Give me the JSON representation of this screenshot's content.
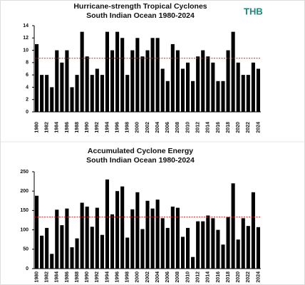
{
  "logo": "THB",
  "chart_data": [
    {
      "type": "bar",
      "title": "Hurricane-strength Tropical Cyclones",
      "subtitle": "South Indian Ocean 1980-2024",
      "categories": [
        "1980",
        null,
        "1982",
        null,
        "1984",
        null,
        "1986",
        null,
        "1988",
        null,
        "1990",
        null,
        "1992",
        null,
        "1994",
        null,
        "1996",
        null,
        "1998",
        null,
        "2000",
        null,
        "2002",
        null,
        "2004",
        null,
        "2006",
        null,
        "2008",
        null,
        "2010",
        null,
        "2012",
        null,
        "2014",
        null,
        "2016",
        null,
        "2018",
        null,
        "2020",
        null,
        "2022",
        null,
        "2024"
      ],
      "values": [
        11,
        6,
        6,
        4,
        10,
        8,
        10,
        4,
        6,
        13,
        9,
        6,
        7,
        6,
        13,
        10,
        13,
        12,
        6,
        10,
        12,
        9,
        10,
        12,
        12,
        7,
        5,
        11,
        10,
        7,
        8,
        5,
        9,
        10,
        9,
        8,
        5,
        5,
        10,
        13,
        8,
        6,
        6,
        8,
        7
      ],
      "color": "#000000",
      "ylim": [
        0,
        14
      ],
      "yticks": [
        0,
        2,
        4,
        6,
        8,
        10,
        12,
        14
      ],
      "reference_line": 8.7,
      "reference_color": "#e02020"
    },
    {
      "type": "bar",
      "title": "Accumulated Cyclone Energy",
      "subtitle": "South Indian Ocean 1980-2024",
      "categories": [
        "1980",
        null,
        "1982",
        null,
        "1984",
        null,
        "1986",
        null,
        "1988",
        null,
        "1990",
        null,
        "1992",
        null,
        "1994",
        null,
        "1996",
        null,
        "1998",
        null,
        "2000",
        null,
        "2002",
        null,
        "2004",
        null,
        "2006",
        null,
        "2008",
        null,
        "2010",
        null,
        "2012",
        null,
        "2014",
        null,
        "2016",
        null,
        "2018",
        null,
        "2020",
        null,
        "2022",
        null,
        "2024"
      ],
      "values": [
        188,
        85,
        105,
        38,
        152,
        112,
        155,
        55,
        78,
        170,
        160,
        108,
        157,
        87,
        230,
        140,
        200,
        212,
        80,
        153,
        197,
        102,
        175,
        155,
        178,
        130,
        105,
        160,
        157,
        82,
        105,
        30,
        122,
        122,
        137,
        130,
        100,
        62,
        133,
        220,
        75,
        130,
        110,
        197,
        107
      ],
      "color": "#000000",
      "ylim": [
        0,
        250
      ],
      "yticks": [
        0,
        50,
        100,
        150,
        200,
        250
      ],
      "reference_line": 133,
      "reference_color": "#e02020"
    }
  ]
}
